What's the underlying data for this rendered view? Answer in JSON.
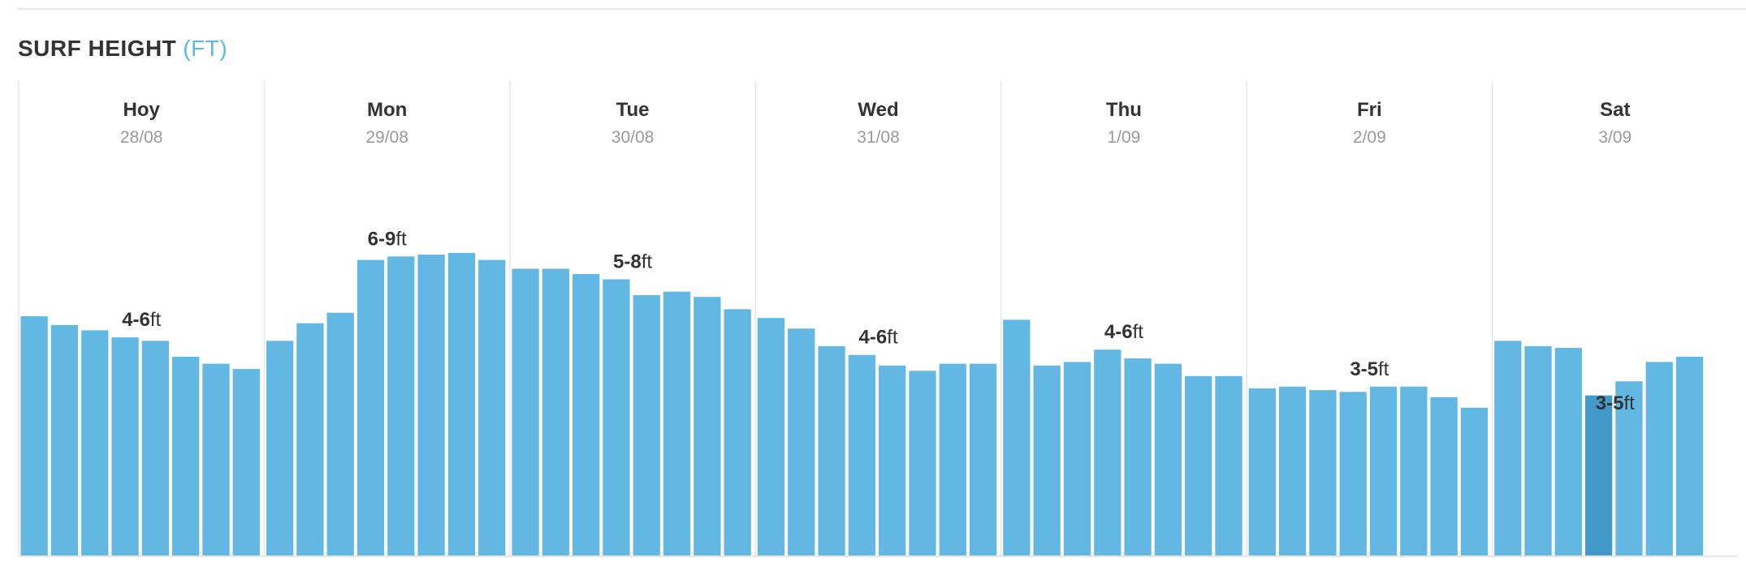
{
  "header": {
    "title": "SURF HEIGHT",
    "unit": "(FT)"
  },
  "colors": {
    "bar": "#62b8e3",
    "bar_highlight": "#4399c8",
    "divider": "#e6e6e6"
  },
  "chart_data": {
    "type": "bar",
    "title": "SURF HEIGHT",
    "ylabel": "(FT)",
    "ylim": [
      0,
      17
    ],
    "grid": false,
    "days": [
      {
        "name": "Hoy",
        "date": "28/08",
        "range": "4-6",
        "unit": "ft",
        "values": [
          6.8,
          6.55,
          6.4,
          6.2,
          6.1,
          5.65,
          5.45,
          5.3
        ]
      },
      {
        "name": "Mon",
        "date": "29/08",
        "range": "6-9",
        "unit": "ft",
        "values": [
          6.1,
          6.6,
          6.9,
          8.4,
          8.5,
          8.55,
          8.6,
          8.4
        ]
      },
      {
        "name": "Tue",
        "date": "30/08",
        "range": "5-8",
        "unit": "ft",
        "values": [
          8.15,
          8.15,
          8.0,
          7.85,
          7.4,
          7.5,
          7.35,
          7.0
        ]
      },
      {
        "name": "Wed",
        "date": "31/08",
        "range": "4-6",
        "unit": "ft",
        "values": [
          6.75,
          6.45,
          5.95,
          5.7,
          5.4,
          5.25,
          5.45,
          5.45
        ]
      },
      {
        "name": "Thu",
        "date": "1/09",
        "range": "4-6",
        "unit": "ft",
        "values": [
          6.7,
          5.4,
          5.5,
          5.85,
          5.6,
          5.45,
          5.1,
          5.1
        ]
      },
      {
        "name": "Fri",
        "date": "2/09",
        "range": "3-5",
        "unit": "ft",
        "values": [
          4.75,
          4.8,
          4.7,
          4.65,
          4.8,
          4.8,
          4.5,
          4.2
        ]
      },
      {
        "name": "Sat",
        "date": "3/09",
        "range": "3-5",
        "unit": "ft",
        "values": [
          6.1,
          5.95,
          5.9,
          4.55,
          4.95,
          5.5,
          5.65
        ]
      }
    ],
    "highlight": {
      "day": 6,
      "index": 3
    }
  }
}
